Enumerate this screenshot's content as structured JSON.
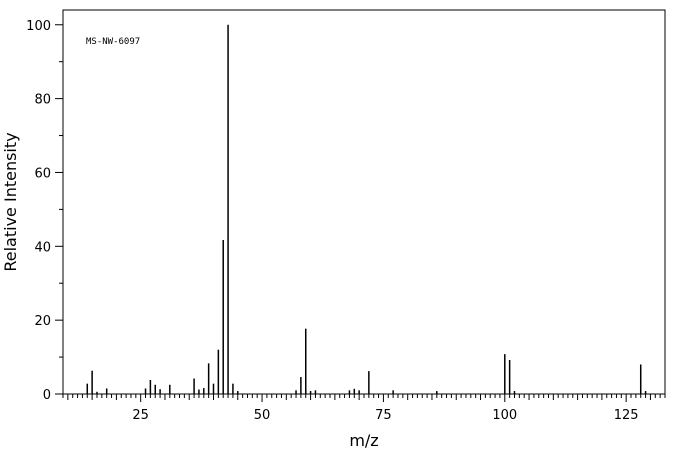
{
  "chart_data": {
    "type": "bar",
    "annotation": "MS-NW-6097",
    "xlabel": "m/z",
    "ylabel": "Relative Intensity",
    "xlim": [
      9,
      133
    ],
    "ylim": [
      0,
      104
    ],
    "x_ticks": [
      25,
      50,
      75,
      100,
      125
    ],
    "y_ticks": [
      0,
      20,
      40,
      60,
      80,
      100
    ],
    "grid": false,
    "peaks": [
      {
        "mz": 14,
        "intensity": 2.8
      },
      {
        "mz": 15,
        "intensity": 6.3
      },
      {
        "mz": 16,
        "intensity": 0.6
      },
      {
        "mz": 18,
        "intensity": 1.5
      },
      {
        "mz": 26,
        "intensity": 1.5
      },
      {
        "mz": 27,
        "intensity": 3.8
      },
      {
        "mz": 28,
        "intensity": 2.5
      },
      {
        "mz": 29,
        "intensity": 1.3
      },
      {
        "mz": 31,
        "intensity": 2.5
      },
      {
        "mz": 36,
        "intensity": 4.2
      },
      {
        "mz": 37,
        "intensity": 1.2
      },
      {
        "mz": 38,
        "intensity": 1.6
      },
      {
        "mz": 39,
        "intensity": 8.3
      },
      {
        "mz": 40,
        "intensity": 2.8
      },
      {
        "mz": 41,
        "intensity": 12.0
      },
      {
        "mz": 42,
        "intensity": 41.7
      },
      {
        "mz": 43,
        "intensity": 100
      },
      {
        "mz": 44,
        "intensity": 2.8
      },
      {
        "mz": 45,
        "intensity": 0.8
      },
      {
        "mz": 57,
        "intensity": 1.0
      },
      {
        "mz": 58,
        "intensity": 4.6
      },
      {
        "mz": 59,
        "intensity": 17.7
      },
      {
        "mz": 60,
        "intensity": 0.8
      },
      {
        "mz": 61,
        "intensity": 1.0
      },
      {
        "mz": 68,
        "intensity": 1.0
      },
      {
        "mz": 69,
        "intensity": 1.4
      },
      {
        "mz": 70,
        "intensity": 1.0
      },
      {
        "mz": 72,
        "intensity": 6.2
      },
      {
        "mz": 77,
        "intensity": 1.0
      },
      {
        "mz": 86,
        "intensity": 0.8
      },
      {
        "mz": 100,
        "intensity": 10.8
      },
      {
        "mz": 101,
        "intensity": 9.2
      },
      {
        "mz": 102,
        "intensity": 0.8
      },
      {
        "mz": 128,
        "intensity": 8.0
      },
      {
        "mz": 129,
        "intensity": 0.8
      }
    ]
  }
}
